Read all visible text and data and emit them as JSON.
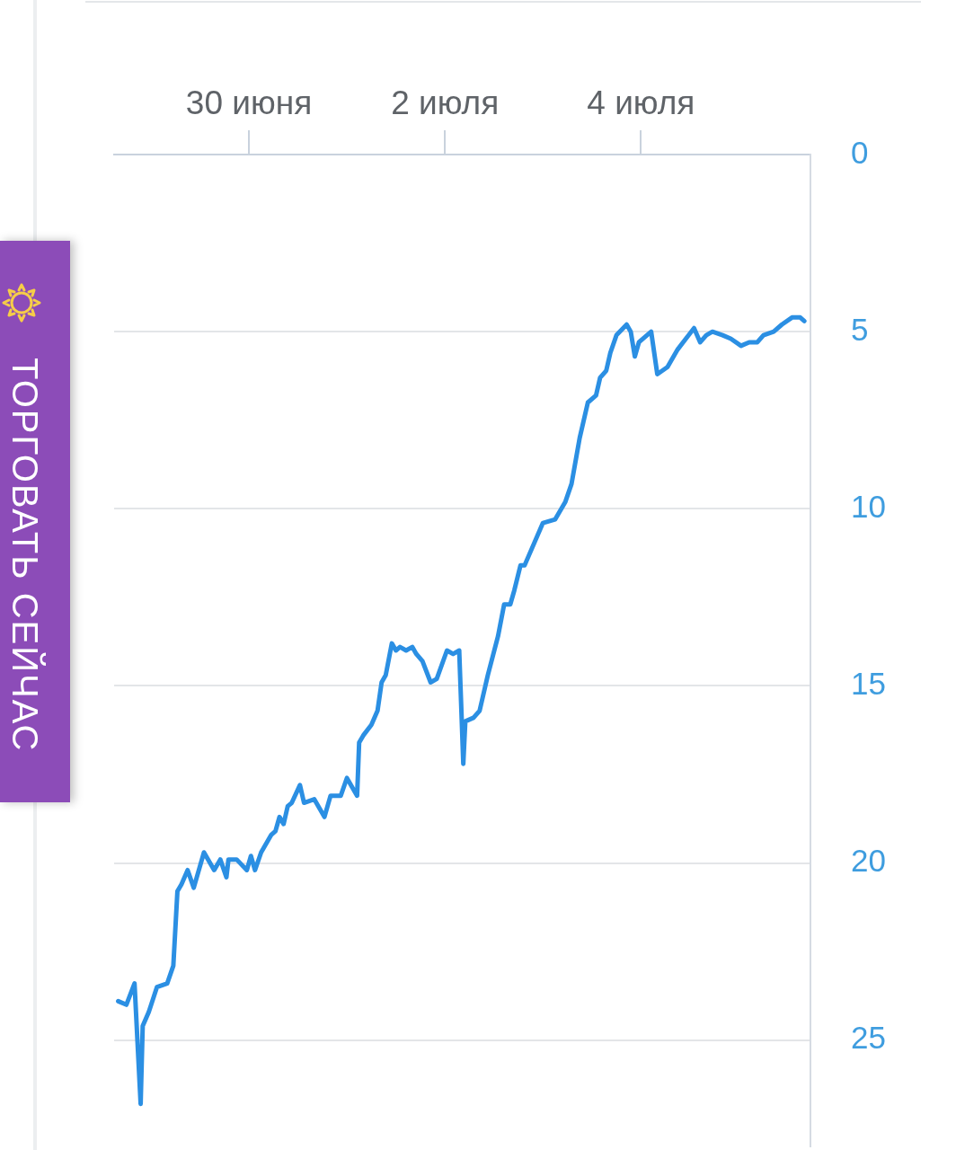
{
  "chart_data": {
    "type": "line",
    "color": "#2b8fe3",
    "x": [
      "--06-28T16:00",
      "--06-28T18:00",
      "--06-28T20:00",
      "--06-28T21:30",
      "--06-28T22:00",
      "--06-28T23:30",
      "--06-29T01:30",
      "--06-29T04:00",
      "--06-29T05:30",
      "--06-29T06:30",
      "--06-29T07:30",
      "--06-29T09:00",
      "--06-29T10:30",
      "--06-29T13:00",
      "--06-29T15:30",
      "--06-29T17:00",
      "--06-29T18:30",
      "--06-29T19:00",
      "--06-29T21:00",
      "--06-29T23:30",
      "--06-30T00:30",
      "--06-30T01:30",
      "--06-30T03:00",
      "--06-30T05:30",
      "--06-30T06:30",
      "--06-30T07:30",
      "--06-30T08:30",
      "--06-30T09:30",
      "--06-30T10:30",
      "--06-30T12:30",
      "--06-30T13:30",
      "--06-30T16:00",
      "--06-30T18:30",
      "--06-30T20:00",
      "--06-30T22:30",
      "--07-01T00:00",
      "--07-01T02:30",
      "--07-01T03:00",
      "--07-01T04:00",
      "--07-01T06:00",
      "--07-01T07:30",
      "--07-01T08:30",
      "--07-01T09:30",
      "--07-01T10:30",
      "--07-01T11:00",
      "--07-01T12:00",
      "--07-01T13:00",
      "--07-01T14:30",
      "--07-01T16:00",
      "--07-01T17:00",
      "--07-01T18:30",
      "--07-01T20:30",
      "--07-01T22:00",
      "--07-02T00:30",
      "--07-02T02:00",
      "--07-02T03:30",
      "--07-02T04:30",
      "--07-02T05:00",
      "--07-02T07:00",
      "--07-02T08:30",
      "--07-02T10:30",
      "--07-02T13:00",
      "--07-02T14:30",
      "--07-02T16:00",
      "--07-02T17:00",
      "--07-02T18:30",
      "--07-02T19:30",
      "--07-03T00:00",
      "--07-03T03:00",
      "--07-03T05:30",
      "--07-03T07:00",
      "--07-03T09:00",
      "--07-03T11:00",
      "--07-03T13:00",
      "--07-03T14:00",
      "--07-03T15:30",
      "--07-03T16:30",
      "--07-03T18:00",
      "--07-03T20:30",
      "--07-03T21:30",
      "--07-03T22:30",
      "--07-03T23:30",
      "--07-04T02:30",
      "--07-04T04:00",
      "--07-04T06:30",
      "--07-04T09:00",
      "--07-04T11:00",
      "--07-04T13:00",
      "--07-04T14:30",
      "--07-04T16:00",
      "--07-04T17:30",
      "--07-04T20:00",
      "--07-04T22:00",
      "--07-05T00:30",
      "--07-05T02:30",
      "--07-05T04:30",
      "--07-05T06:00",
      "--07-05T08:30",
      "--07-05T10:30",
      "--07-05T13:00",
      "--07-05T15:00",
      "--07-05T16:00"
    ],
    "values": [
      23.9,
      24.0,
      23.4,
      26.8,
      24.6,
      24.2,
      23.5,
      23.4,
      22.9,
      20.8,
      20.6,
      20.2,
      20.7,
      19.7,
      20.2,
      19.9,
      20.4,
      19.9,
      19.9,
      20.2,
      19.8,
      20.2,
      19.7,
      19.2,
      19.1,
      18.7,
      18.9,
      18.4,
      18.3,
      17.8,
      18.3,
      18.2,
      18.7,
      18.1,
      18.1,
      17.6,
      18.1,
      16.6,
      16.4,
      16.1,
      15.7,
      14.9,
      14.7,
      14.1,
      13.8,
      14.0,
      13.9,
      14.0,
      13.9,
      14.1,
      14.3,
      14.9,
      14.8,
      14.0,
      14.1,
      14.0,
      17.2,
      16.0,
      15.9,
      15.7,
      14.7,
      13.6,
      12.7,
      12.7,
      12.3,
      11.6,
      11.6,
      10.4,
      10.3,
      9.8,
      9.3,
      8.0,
      7.0,
      6.8,
      6.3,
      6.1,
      5.6,
      5.1,
      4.8,
      5.0,
      5.7,
      5.3,
      5.0,
      6.2,
      6.0,
      5.5,
      5.2,
      4.9,
      5.3,
      5.1,
      5.0,
      5.1,
      5.2,
      5.4,
      5.3,
      5.3,
      5.1,
      5.0,
      4.8,
      4.6,
      4.6,
      4.7
    ],
    "xlim": [
      "--06-28T15:00",
      "--07-05T17:30"
    ],
    "xticks": [
      {
        "value": "--06-30",
        "label": "30 июня"
      },
      {
        "value": "--07-02",
        "label": "2 июля"
      },
      {
        "value": "--07-04",
        "label": "4 июля"
      }
    ],
    "ylim": [
      28,
      0
    ],
    "yticks": [
      0,
      5,
      10,
      15,
      20,
      25
    ],
    "grid": "y",
    "legend": false,
    "annotations": [
      "ТОРГОВАТЬ СЕЙЧАС"
    ]
  }
}
